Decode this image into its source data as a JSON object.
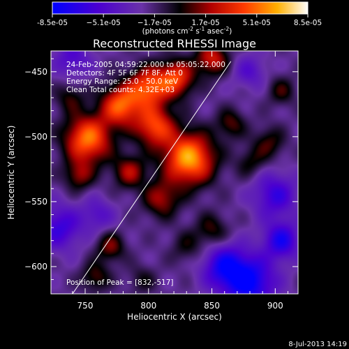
{
  "chart_data": {
    "type": "heatmap",
    "title": "Reconstructed RHESSI Image",
    "xlabel": "Heliocentric X (arcsec)",
    "ylabel": "Heliocentric Y (arcsec)",
    "xlim": [
      723,
      918
    ],
    "ylim": [
      -621,
      -434
    ],
    "x_ticks": [
      750,
      800,
      850,
      900
    ],
    "y_ticks": [
      -450,
      -500,
      -550,
      -600
    ],
    "colorbar": {
      "ticks": [
        "-8.5e-05",
        "−5.1e-05",
        "−1.7e-05",
        "1.7e-05",
        "5.1e-05",
        "8.5e-05"
      ],
      "min": -8.5e-05,
      "max": 8.5e-05,
      "unit": "(photons cm",
      "unit_sup1": "-2",
      "unit_mid": " s",
      "unit_sup2": "-1",
      "unit_end": " asec",
      "unit_sup3": "-2",
      "unit_close": ")"
    },
    "info_lines": [
      "24-Feb-2005 04:59:22.000 to 05:05:22.000",
      "Detectors: 4F 5F 6F 7F 8F, Att 0",
      "Energy Range: 25.0 - 50.0 keV",
      "Clean    Total counts: 4.32E+03"
    ],
    "peak_label": "Position of Peak = [832,-517]",
    "limb_line": [
      [
        740,
        -621
      ],
      [
        865,
        -442
      ]
    ],
    "sources": [
      {
        "x": 832,
        "y": -517,
        "amp": 8.5e-05,
        "sigma": 14
      },
      {
        "x": 752,
        "y": -502,
        "amp": 7.5e-05,
        "sigma": 13
      },
      {
        "x": 778,
        "y": -476,
        "amp": 6.8e-05,
        "sigma": 11
      },
      {
        "x": 800,
        "y": -462,
        "amp": 6.5e-05,
        "sigma": 11
      },
      {
        "x": 822,
        "y": -455,
        "amp": 6e-05,
        "sigma": 10
      },
      {
        "x": 805,
        "y": -492,
        "amp": 6.2e-05,
        "sigma": 11
      },
      {
        "x": 850,
        "y": -440,
        "amp": 5e-05,
        "sigma": 9
      },
      {
        "x": 785,
        "y": -527,
        "amp": 4.2e-05,
        "sigma": 9
      },
      {
        "x": 810,
        "y": -548,
        "amp": 4e-05,
        "sigma": 10
      },
      {
        "x": 745,
        "y": -530,
        "amp": 3.5e-05,
        "sigma": 8
      },
      {
        "x": 770,
        "y": -585,
        "amp": 3.5e-05,
        "sigma": 8
      },
      {
        "x": 758,
        "y": -608,
        "amp": 3e-05,
        "sigma": 8
      },
      {
        "x": 850,
        "y": -572,
        "amp": 2.8e-05,
        "sigma": 9
      },
      {
        "x": 895,
        "y": -505,
        "amp": 2.8e-05,
        "sigma": 9
      },
      {
        "x": 905,
        "y": -465,
        "amp": 2.5e-05,
        "sigma": 8
      },
      {
        "x": 880,
        "y": -520,
        "amp": 2.2e-05,
        "sigma": 8
      },
      {
        "x": 830,
        "y": -585,
        "amp": 2e-05,
        "sigma": 9
      },
      {
        "x": 738,
        "y": -470,
        "amp": 2.5e-05,
        "sigma": 8
      },
      {
        "x": 795,
        "y": -610,
        "amp": 1.8e-05,
        "sigma": 8
      },
      {
        "x": 865,
        "y": -490,
        "amp": 3e-05,
        "sigma": 8
      },
      {
        "x": 880,
        "y": -612,
        "amp": -6e-05,
        "sigma": 14
      },
      {
        "x": 900,
        "y": -545,
        "amp": -4e-05,
        "sigma": 12
      },
      {
        "x": 860,
        "y": -600,
        "amp": -5e-05,
        "sigma": 12
      },
      {
        "x": 730,
        "y": -570,
        "amp": -4e-05,
        "sigma": 12
      },
      {
        "x": 740,
        "y": -440,
        "amp": -3e-05,
        "sigma": 10
      },
      {
        "x": 905,
        "y": -580,
        "amp": -5e-05,
        "sigma": 10
      },
      {
        "x": 760,
        "y": -560,
        "amp": -2.5e-05,
        "sigma": 9
      },
      {
        "x": 880,
        "y": -450,
        "amp": -2.5e-05,
        "sigma": 9
      }
    ],
    "background": -2.2e-05
  },
  "footer_date": "8-Jul-2013 14:19"
}
